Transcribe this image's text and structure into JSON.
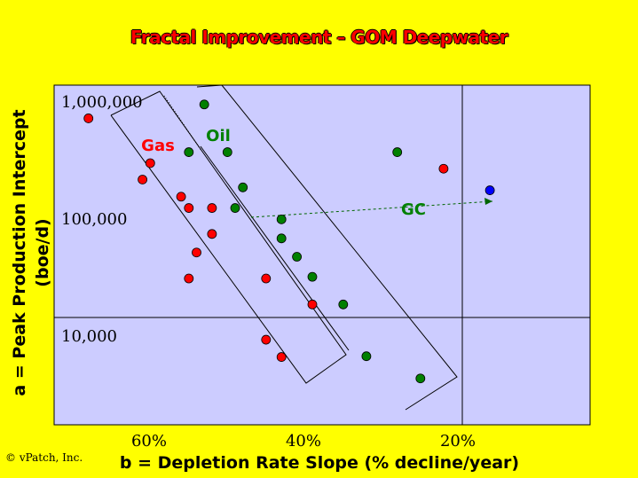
{
  "chart_data": {
    "type": "scatter",
    "title": "Fractal Improvement – GOM Deepwater",
    "xlabel": "b = Depletion Rate Slope (% decline/year)",
    "ylabel_line1": "a = Peak Production Intercept",
    "ylabel_line2": "(boe/d)",
    "x_ticks": [
      "60%",
      "40%",
      "20%"
    ],
    "y_ticks": [
      "1,000,000",
      "100,000",
      "10,000"
    ],
    "y_scale": "log",
    "annotations": [
      "Gas",
      "Oil",
      "GC"
    ],
    "series": [
      {
        "name": "Gas",
        "color": "#ff0000",
        "points": [
          [
            69,
            700000
          ],
          [
            61,
            290000
          ],
          [
            62,
            210000
          ],
          [
            57,
            150000
          ],
          [
            56,
            120000
          ],
          [
            53,
            120000
          ],
          [
            53,
            72000
          ],
          [
            55,
            50000
          ],
          [
            56,
            30000
          ],
          [
            46,
            30000
          ],
          [
            40,
            18000
          ],
          [
            46,
            9000
          ],
          [
            44,
            6400
          ],
          [
            23,
            260000
          ]
        ]
      },
      {
        "name": "Oil",
        "color": "#008000",
        "points": [
          [
            54,
            920000
          ],
          [
            56,
            360000
          ],
          [
            51,
            360000
          ],
          [
            49,
            180000
          ],
          [
            50,
            120000
          ],
          [
            44,
            96000
          ],
          [
            44,
            66000
          ],
          [
            42,
            46000
          ],
          [
            40,
            31000
          ],
          [
            36,
            18000
          ],
          [
            33,
            6500
          ],
          [
            26,
            4200
          ],
          [
            29,
            360000
          ]
        ]
      },
      {
        "name": "GC",
        "color": "#0000ff",
        "points": [
          [
            17,
            170000
          ]
        ]
      }
    ]
  },
  "copyright": "© vPatch, Inc."
}
